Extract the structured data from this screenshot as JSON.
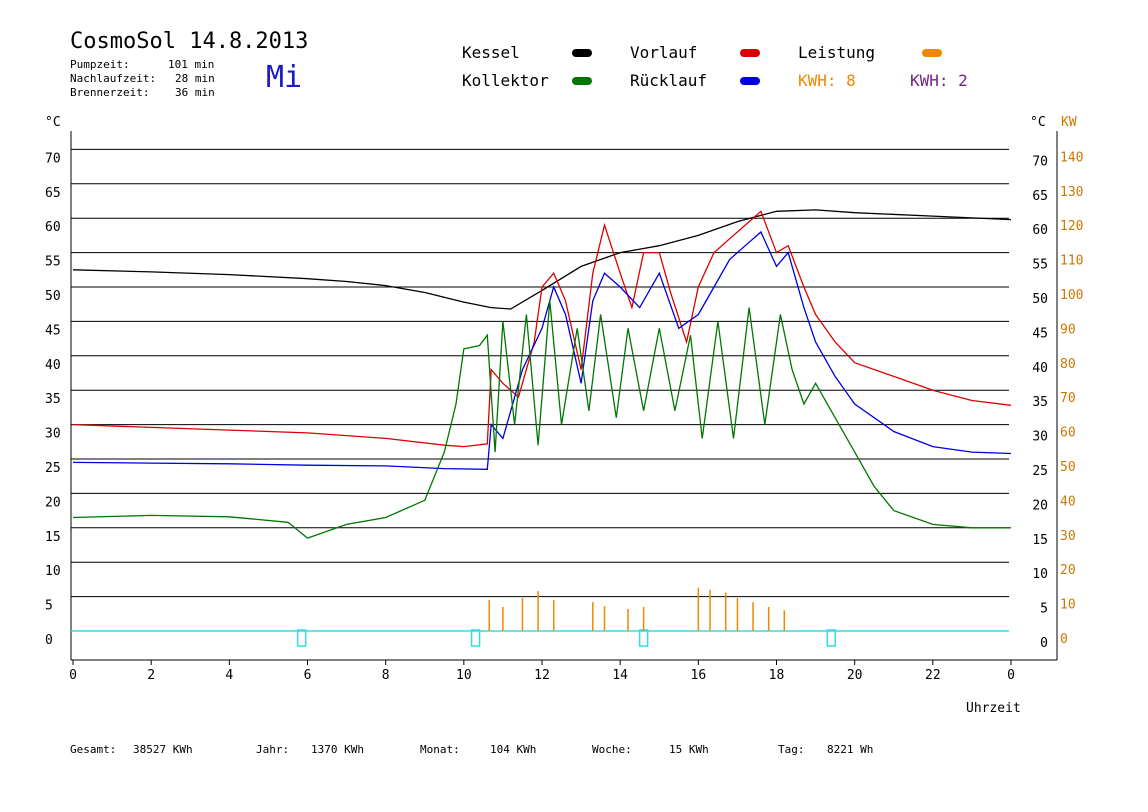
{
  "header": {
    "title": "CosmoSol 14.8.2013",
    "day": "Mi",
    "stats": [
      {
        "label": "Pumpzeit:",
        "value": "101 min"
      },
      {
        "label": "Nachlaufzeit:",
        "value": "28 min"
      },
      {
        "label": "Brennerzeit:",
        "value": "36 min"
      }
    ]
  },
  "legend": {
    "kessel": {
      "label": "Kessel",
      "color": "#000000"
    },
    "vorlauf": {
      "label": "Vorlauf",
      "color": "#dd0000"
    },
    "leistung": {
      "label": "Leistung",
      "color": "#ee8800"
    },
    "kollektor": {
      "label": "Kollektor",
      "color": "#007700"
    },
    "ruecklauf": {
      "label": "Rücklauf",
      "color": "#0000dd"
    },
    "kwh_orange": {
      "label": "KWH: 8",
      "color": "#ee8800"
    },
    "kwh_purple": {
      "label": "KWH: 2",
      "color": "#772288"
    }
  },
  "axes": {
    "left_unit": "°C",
    "right_unit": "°C",
    "right_unit2": "KW",
    "xlabel": "Uhrzeit"
  },
  "footer": [
    {
      "label": "Gesamt:",
      "value": "38527 KWh"
    },
    {
      "label": "Jahr:",
      "value": "1370 KWh"
    },
    {
      "label": "Monat:",
      "value": "104 KWh"
    },
    {
      "label": "Woche:",
      "value": "15 KWh"
    },
    {
      "label": "Tag:",
      "value": "8221 Wh"
    }
  ],
  "chart_data": {
    "type": "line",
    "xlim": [
      0,
      24
    ],
    "ylim": [
      -4,
      74
    ],
    "y2lim": [
      0,
      140
    ],
    "x_ticks": [
      "0",
      "2",
      "4",
      "6",
      "8",
      "10",
      "12",
      "14",
      "16",
      "18",
      "20",
      "22",
      "0"
    ],
    "y_left_ticks": [
      "0",
      "5",
      "10",
      "15",
      "20",
      "25",
      "30",
      "35",
      "40",
      "45",
      "50",
      "55",
      "60",
      "65",
      "70"
    ],
    "y_right_ticks": [
      "0",
      "5",
      "10",
      "15",
      "20",
      "25",
      "30",
      "35",
      "40",
      "45",
      "50",
      "55",
      "60",
      "65",
      "70"
    ],
    "y_right2_ticks": [
      "0",
      "10",
      "20",
      "30",
      "40",
      "50",
      "60",
      "70",
      "80",
      "90",
      "100",
      "110",
      "120",
      "130",
      "140"
    ],
    "grid": true,
    "series": [
      {
        "name": "Kessel",
        "color": "#000000",
        "points": [
          [
            0,
            52.5
          ],
          [
            2,
            52.2
          ],
          [
            4,
            51.8
          ],
          [
            6,
            51.2
          ],
          [
            7,
            50.8
          ],
          [
            8,
            50.2
          ],
          [
            9,
            49.2
          ],
          [
            10,
            47.8
          ],
          [
            10.7,
            47.0
          ],
          [
            11.2,
            46.8
          ],
          [
            12,
            49.5
          ],
          [
            13,
            53
          ],
          [
            14,
            55
          ],
          [
            15,
            56
          ],
          [
            16,
            57.5
          ],
          [
            17,
            59.5
          ],
          [
            18,
            61
          ],
          [
            19,
            61.2
          ],
          [
            20,
            60.8
          ],
          [
            22,
            60.3
          ],
          [
            24,
            59.8
          ]
        ]
      },
      {
        "name": "Vorlauf",
        "color": "#dd0000",
        "points": [
          [
            0,
            30
          ],
          [
            2,
            29.6
          ],
          [
            4,
            29.2
          ],
          [
            6,
            28.8
          ],
          [
            8,
            28
          ],
          [
            9.5,
            27
          ],
          [
            10,
            26.8
          ],
          [
            10.6,
            27.2
          ],
          [
            10.7,
            38
          ],
          [
            11,
            36
          ],
          [
            11.4,
            34
          ],
          [
            11.8,
            42
          ],
          [
            12,
            50
          ],
          [
            12.3,
            52
          ],
          [
            12.6,
            48
          ],
          [
            13,
            38
          ],
          [
            13.3,
            52
          ],
          [
            13.6,
            59
          ],
          [
            14,
            52
          ],
          [
            14.3,
            47
          ],
          [
            14.6,
            55
          ],
          [
            15,
            55
          ],
          [
            15.3,
            49
          ],
          [
            15.7,
            42
          ],
          [
            16,
            50
          ],
          [
            16.4,
            55
          ],
          [
            16.8,
            57
          ],
          [
            17.2,
            59
          ],
          [
            17.6,
            61
          ],
          [
            18,
            55
          ],
          [
            18.3,
            56
          ],
          [
            18.7,
            50
          ],
          [
            19,
            46
          ],
          [
            19.5,
            42
          ],
          [
            20,
            39
          ],
          [
            21,
            37
          ],
          [
            22,
            35
          ],
          [
            23,
            33.5
          ],
          [
            24,
            32.8
          ]
        ]
      },
      {
        "name": "Rücklauf",
        "color": "#0000dd",
        "points": [
          [
            0,
            24.5
          ],
          [
            2,
            24.4
          ],
          [
            4,
            24.3
          ],
          [
            6,
            24.1
          ],
          [
            8,
            24
          ],
          [
            9.5,
            23.6
          ],
          [
            10.6,
            23.5
          ],
          [
            10.7,
            30
          ],
          [
            11,
            28
          ],
          [
            11.5,
            38
          ],
          [
            12,
            44
          ],
          [
            12.3,
            50
          ],
          [
            12.6,
            46
          ],
          [
            13,
            36
          ],
          [
            13.3,
            48
          ],
          [
            13.6,
            52
          ],
          [
            14,
            50
          ],
          [
            14.5,
            47
          ],
          [
            15,
            52
          ],
          [
            15.5,
            44
          ],
          [
            16,
            46
          ],
          [
            16.4,
            50
          ],
          [
            16.8,
            54
          ],
          [
            17.2,
            56
          ],
          [
            17.6,
            58
          ],
          [
            18,
            53
          ],
          [
            18.3,
            55
          ],
          [
            18.7,
            47
          ],
          [
            19,
            42
          ],
          [
            19.5,
            37
          ],
          [
            20,
            33
          ],
          [
            21,
            29
          ],
          [
            22,
            26.8
          ],
          [
            23,
            26
          ],
          [
            24,
            25.8
          ]
        ]
      },
      {
        "name": "Kollektor",
        "color": "#007700",
        "points": [
          [
            0,
            16.5
          ],
          [
            2,
            16.8
          ],
          [
            4,
            16.6
          ],
          [
            5.5,
            15.8
          ],
          [
            6,
            13.5
          ],
          [
            7,
            15.5
          ],
          [
            8,
            16.5
          ],
          [
            9,
            19
          ],
          [
            9.5,
            26
          ],
          [
            9.8,
            33
          ],
          [
            10,
            41
          ],
          [
            10.4,
            41.5
          ],
          [
            10.6,
            43
          ],
          [
            10.8,
            26
          ],
          [
            11,
            45
          ],
          [
            11.3,
            30
          ],
          [
            11.6,
            46
          ],
          [
            11.9,
            27
          ],
          [
            12.2,
            48
          ],
          [
            12.5,
            30
          ],
          [
            12.9,
            44
          ],
          [
            13.2,
            32
          ],
          [
            13.5,
            46
          ],
          [
            13.9,
            31
          ],
          [
            14.2,
            44
          ],
          [
            14.6,
            32
          ],
          [
            15,
            44
          ],
          [
            15.4,
            32
          ],
          [
            15.8,
            43
          ],
          [
            16.1,
            28
          ],
          [
            16.5,
            45
          ],
          [
            16.9,
            28
          ],
          [
            17.3,
            47
          ],
          [
            17.7,
            30
          ],
          [
            18.1,
            46
          ],
          [
            18.4,
            38
          ],
          [
            18.7,
            33
          ],
          [
            19,
            36
          ],
          [
            19.5,
            31
          ],
          [
            20,
            26
          ],
          [
            20.5,
            21
          ],
          [
            21,
            17.5
          ],
          [
            22,
            15.5
          ],
          [
            23,
            15
          ],
          [
            24,
            15
          ]
        ]
      }
    ]
  }
}
